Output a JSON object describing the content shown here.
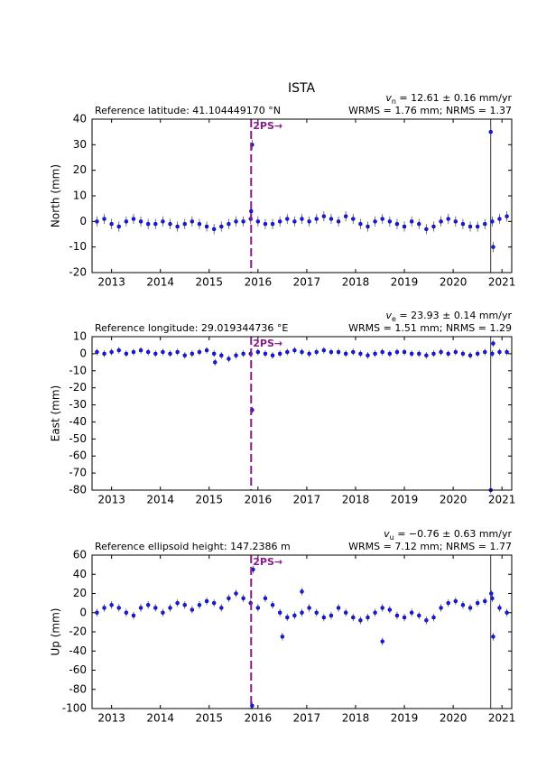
{
  "title": "ISTA",
  "chart_data": [
    {
      "type": "scatter",
      "ylabel": "North (mm)",
      "reference_label": "Reference latitude: 41.104449170 °N",
      "velocity_symbol": "v",
      "velocity_subscript": "n",
      "velocity_text": " = 12.61 ± 0.16 mm/yr",
      "stats_label": "WRMS = 1.76 mm; NRMS = 1.37",
      "x": [
        2012.7,
        2012.85,
        2013.0,
        2013.15,
        2013.3,
        2013.45,
        2013.6,
        2013.75,
        2013.9,
        2014.05,
        2014.2,
        2014.35,
        2014.5,
        2014.65,
        2014.8,
        2014.95,
        2015.1,
        2015.25,
        2015.4,
        2015.55,
        2015.7,
        2015.85,
        2016.0,
        2016.15,
        2016.3,
        2016.45,
        2016.6,
        2016.75,
        2016.9,
        2017.05,
        2017.2,
        2017.35,
        2017.5,
        2017.65,
        2017.8,
        2017.95,
        2018.1,
        2018.25,
        2018.4,
        2018.55,
        2018.7,
        2018.85,
        2019.0,
        2019.15,
        2019.3,
        2019.45,
        2019.6,
        2019.75,
        2019.9,
        2020.05,
        2020.2,
        2020.35,
        2020.5,
        2020.65,
        2020.8,
        2020.95,
        2021.1,
        2015.88,
        2015.86,
        2020.77,
        2020.82
      ],
      "values": [
        0,
        1,
        -1,
        -2,
        0,
        1,
        0,
        -1,
        -1,
        0,
        -1,
        -2,
        -1,
        0,
        -1,
        -2,
        -3,
        -2,
        -1,
        0,
        0,
        1,
        0,
        -1,
        -1,
        0,
        1,
        0,
        1,
        0,
        1,
        2,
        1,
        0,
        2,
        1,
        -1,
        -2,
        0,
        1,
        0,
        -1,
        -2,
        0,
        -1,
        -3,
        -2,
        0,
        1,
        0,
        -1,
        -2,
        -2,
        -1,
        0,
        1,
        2,
        30,
        4,
        35,
        -10
      ],
      "error": 2,
      "color": "#1a1ae6",
      "xlim": [
        2012.6,
        2021.2
      ],
      "ylim": [
        -20,
        40
      ],
      "xticks": [
        2013,
        2014,
        2015,
        2016,
        2017,
        2018,
        2019,
        2020,
        2021
      ],
      "yticks": [
        -20,
        -10,
        0,
        10,
        20,
        30,
        40
      ],
      "events": [
        {
          "x": 2015.86,
          "label": "2PS→",
          "color": "#8b1a8b"
        }
      ],
      "reference_lines": [
        2020.77
      ]
    },
    {
      "type": "scatter",
      "ylabel": "East (mm)",
      "reference_label": "Reference longitude: 29.019344736 °E",
      "velocity_symbol": "v",
      "velocity_subscript": "e",
      "velocity_text": " = 23.93 ± 0.14 mm/yr",
      "stats_label": "WRMS = 1.51 mm; NRMS = 1.29",
      "x": [
        2012.7,
        2012.85,
        2013.0,
        2013.15,
        2013.3,
        2013.45,
        2013.6,
        2013.75,
        2013.9,
        2014.05,
        2014.2,
        2014.35,
        2014.5,
        2014.65,
        2014.8,
        2014.95,
        2015.1,
        2015.25,
        2015.4,
        2015.55,
        2015.7,
        2015.85,
        2016.0,
        2016.15,
        2016.3,
        2016.45,
        2016.6,
        2016.75,
        2016.9,
        2017.05,
        2017.2,
        2017.35,
        2017.5,
        2017.65,
        2017.8,
        2017.95,
        2018.1,
        2018.25,
        2018.4,
        2018.55,
        2018.7,
        2018.85,
        2019.0,
        2019.15,
        2019.3,
        2019.45,
        2019.6,
        2019.75,
        2019.9,
        2020.05,
        2020.2,
        2020.35,
        2020.5,
        2020.65,
        2020.8,
        2020.95,
        2021.1,
        2015.88,
        2015.12,
        2020.77,
        2020.82
      ],
      "values": [
        1,
        0,
        1,
        2,
        0,
        1,
        2,
        1,
        0,
        1,
        0,
        1,
        -1,
        0,
        1,
        2,
        0,
        -1,
        -3,
        -1,
        0,
        0,
        1,
        0,
        -1,
        0,
        1,
        2,
        1,
        0,
        1,
        2,
        1,
        1,
        0,
        1,
        0,
        -1,
        0,
        1,
        0,
        1,
        1,
        0,
        0,
        -1,
        0,
        1,
        0,
        1,
        0,
        -1,
        0,
        1,
        0,
        1,
        1,
        -33,
        -5,
        -80,
        6
      ],
      "error": 2,
      "color": "#1a1ae6",
      "xlim": [
        2012.6,
        2021.2
      ],
      "ylim": [
        -80,
        10
      ],
      "xticks": [
        2013,
        2014,
        2015,
        2016,
        2017,
        2018,
        2019,
        2020,
        2021
      ],
      "yticks": [
        -80,
        -70,
        -60,
        -50,
        -40,
        -30,
        -20,
        -10,
        0,
        10
      ],
      "events": [
        {
          "x": 2015.86,
          "label": "2PS→",
          "color": "#8b1a8b"
        }
      ],
      "reference_lines": [
        2020.77
      ]
    },
    {
      "type": "scatter",
      "ylabel": "Up (mm)",
      "reference_label": "Reference ellipsoid height: 147.2386 m",
      "velocity_symbol": "v",
      "velocity_subscript": "u",
      "velocity_text": " = −0.76 ± 0.63 mm/yr",
      "stats_label": "WRMS = 7.12 mm; NRMS = 1.77",
      "x": [
        2012.7,
        2012.85,
        2013.0,
        2013.15,
        2013.3,
        2013.45,
        2013.6,
        2013.75,
        2013.9,
        2014.05,
        2014.2,
        2014.35,
        2014.5,
        2014.65,
        2014.8,
        2014.95,
        2015.1,
        2015.25,
        2015.4,
        2015.55,
        2015.7,
        2015.85,
        2016.0,
        2016.15,
        2016.3,
        2016.45,
        2016.6,
        2016.75,
        2016.9,
        2017.05,
        2017.2,
        2017.35,
        2017.5,
        2017.65,
        2017.8,
        2017.95,
        2018.1,
        2018.25,
        2018.4,
        2018.55,
        2018.7,
        2018.85,
        2019.0,
        2019.15,
        2019.3,
        2019.45,
        2019.6,
        2019.75,
        2019.9,
        2020.05,
        2020.2,
        2020.35,
        2020.5,
        2020.65,
        2020.8,
        2020.95,
        2021.1,
        2015.88,
        2015.9,
        2016.5,
        2016.9,
        2018.55,
        2020.82,
        2020.78
      ],
      "values": [
        0,
        5,
        8,
        5,
        0,
        -3,
        5,
        8,
        5,
        0,
        5,
        10,
        8,
        3,
        8,
        12,
        10,
        5,
        15,
        20,
        15,
        10,
        5,
        15,
        8,
        0,
        -5,
        -3,
        0,
        5,
        0,
        -5,
        -3,
        5,
        0,
        -5,
        -8,
        -5,
        0,
        5,
        3,
        -3,
        -5,
        0,
        -3,
        -8,
        -5,
        5,
        10,
        12,
        8,
        5,
        10,
        12,
        15,
        5,
        0,
        -97,
        45,
        -25,
        22,
        -30,
        -25,
        20
      ],
      "error": 4,
      "color": "#1a1ae6",
      "xlim": [
        2012.6,
        2021.2
      ],
      "ylim": [
        -100,
        60
      ],
      "xticks": [
        2013,
        2014,
        2015,
        2016,
        2017,
        2018,
        2019,
        2020,
        2021
      ],
      "yticks": [
        -100,
        -80,
        -60,
        -40,
        -20,
        0,
        20,
        40,
        60
      ],
      "events": [
        {
          "x": 2015.86,
          "label": "2PS→",
          "color": "#8b1a8b"
        }
      ],
      "reference_lines": [
        2020.77
      ]
    }
  ]
}
